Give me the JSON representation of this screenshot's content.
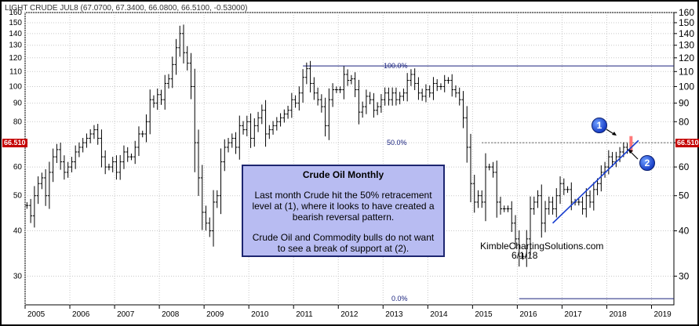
{
  "header": "LIGHT CRUDE JUL8 (67.0700, 67.3400, 66.0800, 66.5100, -0.53000)",
  "last_price_label": "66.510",
  "annotation": {
    "title": "Crude Oil Monthly",
    "para1": "Last month Crude hit the 50% retracement level at (1), where it looks to have created a bearish reversal pattern.",
    "para2": "Crude Oil and Commodity bulls do not want to see a break of support at (2)."
  },
  "watermark": {
    "site": "KimbleChartingSolutions.com",
    "date": "6/1/18"
  },
  "markers": [
    "1",
    "2"
  ],
  "colors": {
    "up": "#000000",
    "down": "#000000",
    "fib": "#1a237e",
    "trendline": "#1a3fd0",
    "highlight": "#ff6a6a",
    "box": "#b8bcf2"
  },
  "chart_data": {
    "type": "ohlc",
    "scale": "log",
    "ylim": [
      25,
      160
    ],
    "y_ticks_left": [
      "30",
      "40",
      "50",
      "60",
      "70",
      "80",
      "90",
      "100",
      "110",
      "120",
      "130",
      "140",
      "150",
      "160"
    ],
    "y_ticks_right": [
      "30",
      "40",
      "50",
      "60",
      "70",
      "80",
      "90",
      "100",
      "110",
      "120",
      "130",
      "140",
      "150",
      "160"
    ],
    "x_years": [
      "2005",
      "2006",
      "2007",
      "2008",
      "2009",
      "2010",
      "2011",
      "2012",
      "2013",
      "2014",
      "2015",
      "2016",
      "2017",
      "2018",
      "2019"
    ],
    "fib_levels": [
      {
        "label": "100.0%",
        "price": 114
      },
      {
        "label": "50.0%",
        "price": 70
      },
      {
        "label": "0.0%",
        "price": 26
      }
    ],
    "monthly_close": [
      47,
      44,
      50,
      54,
      56,
      50,
      58,
      64,
      67,
      62,
      58,
      60,
      62,
      66,
      68,
      70,
      72,
      74,
      76,
      72,
      64,
      60,
      60,
      62,
      58,
      62,
      66,
      64,
      64,
      68,
      74,
      74,
      80,
      92,
      90,
      95,
      92,
      102,
      105,
      115,
      128,
      140,
      124,
      116,
      100,
      70,
      56,
      45,
      42,
      40,
      48,
      50,
      62,
      68,
      70,
      72,
      68,
      78,
      76,
      80,
      72,
      78,
      82,
      86,
      74,
      76,
      78,
      80,
      82,
      84,
      86,
      92,
      90,
      96,
      106,
      112,
      102,
      96,
      92,
      88,
      78,
      92,
      98,
      98,
      98,
      108,
      104,
      105,
      98,
      85,
      88,
      94,
      92,
      86,
      88,
      92,
      96,
      92,
      96,
      92,
      94,
      96,
      104,
      108,
      102,
      96,
      94,
      98,
      96,
      102,
      100,
      100,
      104,
      104,
      98,
      96,
      92,
      82,
      68,
      54,
      48,
      50,
      48,
      60,
      60,
      58,
      48,
      46,
      46,
      46,
      42,
      38,
      34,
      34,
      38,
      46,
      48,
      50,
      42,
      46,
      48,
      46,
      50,
      54,
      52,
      52,
      48,
      48,
      48,
      46,
      50,
      48,
      52,
      54,
      58,
      60,
      64,
      62,
      64,
      66,
      68,
      67
    ],
    "highlight_bar": {
      "open": 68,
      "high": 73,
      "low": 66,
      "close": 67
    }
  }
}
